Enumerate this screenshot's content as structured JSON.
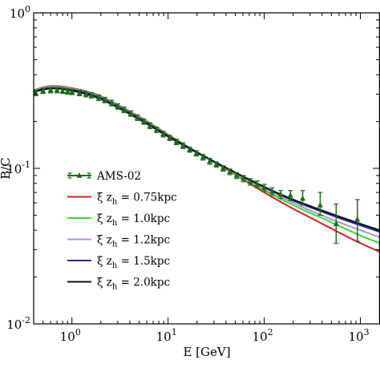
{
  "chart_data": {
    "type": "line",
    "title": "",
    "xlabel": "E [GeV]",
    "ylabel": "B/C",
    "x_scale": "log",
    "y_scale": "log",
    "xlim": [
      0.4,
      1600
    ],
    "ylim": [
      0.01,
      1
    ],
    "x_ticks": [
      {
        "base": "10",
        "exp": "0"
      },
      {
        "base": "10",
        "exp": "1"
      },
      {
        "base": "10",
        "exp": "2"
      },
      {
        "base": "10",
        "exp": "3"
      }
    ],
    "y_ticks": [
      {
        "base": "10",
        "exp": "-2"
      },
      {
        "base": "10",
        "exp": "-1"
      },
      {
        "base": "10",
        "exp": "0"
      }
    ],
    "legend_position": "lower-left",
    "series": [
      {
        "name": "AMS-02",
        "kind": "points",
        "color": "#1a6b1a",
        "points": [
          [
            0.42,
            0.305
          ],
          [
            0.5,
            0.315
          ],
          [
            0.6,
            0.318
          ],
          [
            0.7,
            0.318
          ],
          [
            0.8,
            0.315
          ],
          [
            0.9,
            0.312
          ],
          [
            1.0,
            0.31
          ],
          [
            1.2,
            0.305
          ],
          [
            1.4,
            0.3
          ],
          [
            1.6,
            0.295
          ],
          [
            1.9,
            0.285
          ],
          [
            2.2,
            0.275
          ],
          [
            2.6,
            0.263
          ],
          [
            3.0,
            0.25
          ],
          [
            3.5,
            0.238
          ],
          [
            4.1,
            0.225
          ],
          [
            4.8,
            0.212
          ],
          [
            5.6,
            0.2
          ],
          [
            6.5,
            0.188
          ],
          [
            7.6,
            0.177
          ],
          [
            8.9,
            0.166
          ],
          [
            10.4,
            0.157
          ],
          [
            12.2,
            0.148
          ],
          [
            14.3,
            0.14
          ],
          [
            16.8,
            0.132
          ],
          [
            19.7,
            0.125
          ],
          [
            23.1,
            0.118
          ],
          [
            27.1,
            0.111
          ],
          [
            31.8,
            0.106
          ],
          [
            37.4,
            0.1
          ],
          [
            43.9,
            0.095
          ],
          [
            51.6,
            0.09
          ],
          [
            60.6,
            0.086
          ],
          [
            71.4,
            0.082
          ],
          [
            84.4,
            0.079
          ],
          [
            100.1,
            0.075
          ],
          [
            121,
            0.071
          ],
          [
            148,
            0.068
          ],
          [
            187,
            0.067
          ],
          [
            251,
            0.064
          ],
          [
            382,
            0.058
          ],
          [
            560,
            0.044
          ],
          [
            930,
            0.047
          ]
        ],
        "errors_y": [
          [
            0.012,
            0.012
          ],
          [
            0.012,
            0.012
          ],
          [
            0.012,
            0.012
          ],
          [
            0.012,
            0.012
          ],
          [
            0.012,
            0.012
          ],
          [
            0.012,
            0.012
          ],
          [
            0.012,
            0.012
          ],
          [
            0.012,
            0.012
          ],
          [
            0.012,
            0.012
          ],
          [
            0.012,
            0.012
          ],
          [
            0.012,
            0.012
          ],
          [
            0.011,
            0.011
          ],
          [
            0.011,
            0.011
          ],
          [
            0.01,
            0.01
          ],
          [
            0.01,
            0.01
          ],
          [
            0.009,
            0.009
          ],
          [
            0.009,
            0.009
          ],
          [
            0.008,
            0.008
          ],
          [
            0.008,
            0.008
          ],
          [
            0.007,
            0.007
          ],
          [
            0.007,
            0.007
          ],
          [
            0.006,
            0.006
          ],
          [
            0.006,
            0.006
          ],
          [
            0.006,
            0.006
          ],
          [
            0.005,
            0.005
          ],
          [
            0.005,
            0.005
          ],
          [
            0.005,
            0.005
          ],
          [
            0.005,
            0.005
          ],
          [
            0.004,
            0.004
          ],
          [
            0.004,
            0.004
          ],
          [
            0.004,
            0.004
          ],
          [
            0.004,
            0.004
          ],
          [
            0.004,
            0.004
          ],
          [
            0.004,
            0.004
          ],
          [
            0.004,
            0.004
          ],
          [
            0.004,
            0.004
          ],
          [
            0.004,
            0.004
          ],
          [
            0.004,
            0.004
          ],
          [
            0.005,
            0.005
          ],
          [
            0.006,
            0.008
          ],
          [
            0.008,
            0.012
          ],
          [
            0.011,
            0.015
          ],
          [
            0.013,
            0.016
          ]
        ]
      },
      {
        "name_parts": {
          "greek": "ξ",
          "var": "z",
          "sub": "h",
          "value": " = 0.75kpc"
        },
        "kind": "line",
        "color": "#d42020",
        "points": [
          [
            0.4,
            0.318
          ],
          [
            0.6,
            0.338
          ],
          [
            1.0,
            0.328
          ],
          [
            2.0,
            0.29
          ],
          [
            5.0,
            0.215
          ],
          [
            10,
            0.165
          ],
          [
            20,
            0.127
          ],
          [
            50,
            0.091
          ],
          [
            100,
            0.07
          ],
          [
            200,
            0.055
          ],
          [
            500,
            0.041
          ],
          [
            1000,
            0.033
          ],
          [
            1600,
            0.029
          ]
        ]
      },
      {
        "name_parts": {
          "greek": "ξ",
          "var": "z",
          "sub": "h",
          "value": " = 1.0kpc"
        },
        "kind": "line",
        "color": "#33dd33",
        "points": [
          [
            0.4,
            0.316
          ],
          [
            0.6,
            0.335
          ],
          [
            1.0,
            0.325
          ],
          [
            2.0,
            0.287
          ],
          [
            5.0,
            0.213
          ],
          [
            10,
            0.164
          ],
          [
            20,
            0.127
          ],
          [
            50,
            0.092
          ],
          [
            100,
            0.072
          ],
          [
            200,
            0.058
          ],
          [
            500,
            0.045
          ],
          [
            1000,
            0.037
          ],
          [
            1600,
            0.033
          ]
        ]
      },
      {
        "name_parts": {
          "greek": "ξ",
          "var": "z",
          "sub": "h",
          "value": " = 1.2kpc"
        },
        "kind": "line",
        "color": "#b090d8",
        "points": [
          [
            0.4,
            0.314
          ],
          [
            0.6,
            0.333
          ],
          [
            1.0,
            0.323
          ],
          [
            2.0,
            0.285
          ],
          [
            5.0,
            0.212
          ],
          [
            10,
            0.163
          ],
          [
            20,
            0.127
          ],
          [
            50,
            0.093
          ],
          [
            100,
            0.074
          ],
          [
            200,
            0.06
          ],
          [
            500,
            0.047
          ],
          [
            1000,
            0.04
          ],
          [
            1600,
            0.036
          ]
        ]
      },
      {
        "name_parts": {
          "greek": "ξ",
          "var": "z",
          "sub": "h",
          "value": " = 1.5kpc"
        },
        "kind": "line",
        "color": "#1a2a9a",
        "points": [
          [
            0.4,
            0.312
          ],
          [
            0.6,
            0.33
          ],
          [
            1.0,
            0.32
          ],
          [
            2.0,
            0.283
          ],
          [
            5.0,
            0.21
          ],
          [
            10,
            0.162
          ],
          [
            20,
            0.127
          ],
          [
            50,
            0.094
          ],
          [
            100,
            0.076
          ],
          [
            200,
            0.062
          ],
          [
            500,
            0.05
          ],
          [
            1000,
            0.043
          ],
          [
            1600,
            0.039
          ]
        ]
      },
      {
        "name_parts": {
          "greek": "ξ",
          "var": "z",
          "sub": "h",
          "value": " = 2.0kpc"
        },
        "kind": "line",
        "color": "#111111",
        "points": [
          [
            0.4,
            0.31
          ],
          [
            0.6,
            0.326
          ],
          [
            1.0,
            0.316
          ],
          [
            2.0,
            0.279
          ],
          [
            5.0,
            0.207
          ],
          [
            10,
            0.16
          ],
          [
            20,
            0.126
          ],
          [
            50,
            0.094
          ],
          [
            100,
            0.076
          ],
          [
            200,
            0.063
          ],
          [
            500,
            0.051
          ],
          [
            1000,
            0.044
          ],
          [
            1600,
            0.04
          ]
        ]
      }
    ]
  }
}
